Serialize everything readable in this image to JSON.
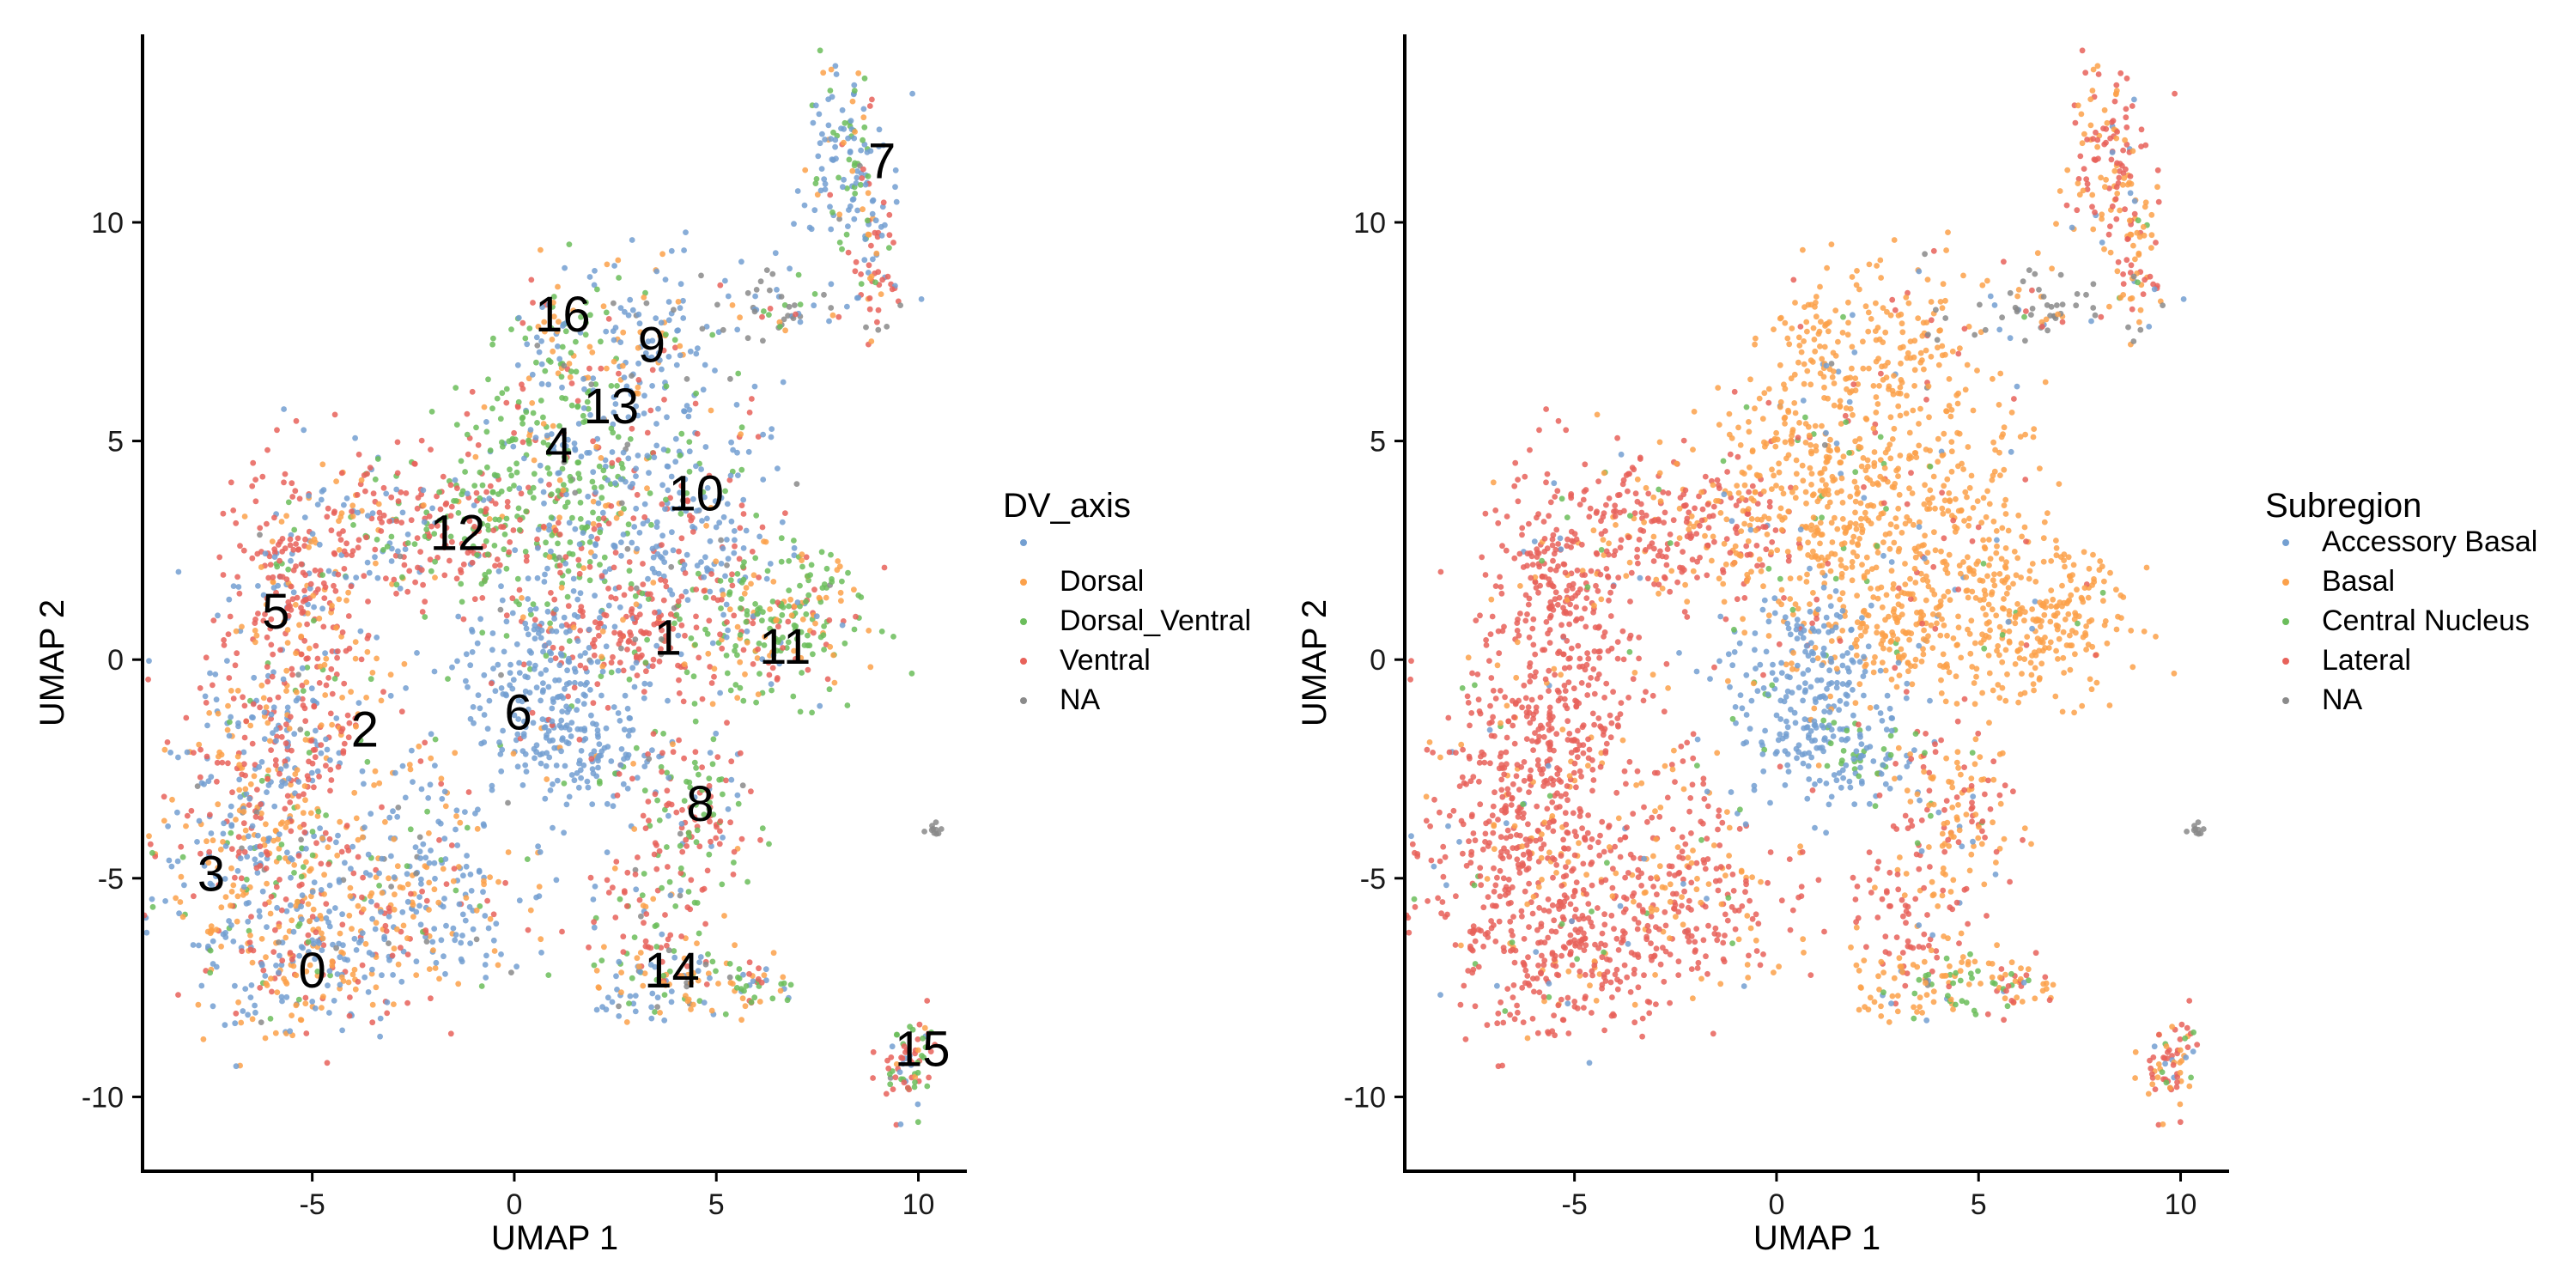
{
  "colors": {
    "blue": "#739FD1",
    "orange": "#FCA14A",
    "green": "#6BBD5B",
    "red": "#E8625A",
    "gray": "#8A8A8A"
  },
  "chart_data": [
    {
      "type": "scatter",
      "title": "",
      "xlabel": "UMAP 1",
      "ylabel": "UMAP 2",
      "xlim": [
        -9.2,
        11.2
      ],
      "ylim": [
        -11.7,
        14.3
      ],
      "xticks": [
        -5,
        0,
        5,
        10
      ],
      "yticks": [
        -10,
        -5,
        0,
        5,
        10
      ],
      "xtick_labels": [
        "-5",
        "0",
        "5",
        "10"
      ],
      "ytick_labels": [
        "-10",
        "-5",
        "0",
        "5",
        "10"
      ],
      "grid": false,
      "legend": {
        "title": "DV_axis",
        "placement": "right",
        "entries": [
          {
            "label": "",
            "color": "#739FD1"
          },
          {
            "label": "Dorsal",
            "color": "#FCA14A"
          },
          {
            "label": "Dorsal_Ventral",
            "color": "#6BBD5B"
          },
          {
            "label": "Ventral",
            "color": "#E8625A"
          },
          {
            "label": "NA",
            "color": "#8A8A8A"
          }
        ]
      },
      "cluster_labels": [
        {
          "text": "0",
          "x": -5.0,
          "y": -7.1
        },
        {
          "text": "1",
          "x": 3.8,
          "y": 0.5
        },
        {
          "text": "2",
          "x": -3.7,
          "y": -1.6
        },
        {
          "text": "3",
          "x": -7.5,
          "y": -4.9
        },
        {
          "text": "4",
          "x": 1.1,
          "y": 4.9
        },
        {
          "text": "5",
          "x": -5.9,
          "y": 1.1
        },
        {
          "text": "6",
          "x": 0.1,
          "y": -1.2
        },
        {
          "text": "7",
          "x": 9.1,
          "y": 11.4
        },
        {
          "text": "8",
          "x": 4.6,
          "y": -3.3
        },
        {
          "text": "9",
          "x": 3.4,
          "y": 7.2
        },
        {
          "text": "10",
          "x": 4.5,
          "y": 3.8
        },
        {
          "text": "11",
          "x": 6.7,
          "y": 0.3
        },
        {
          "text": "12",
          "x": -1.4,
          "y": 2.9
        },
        {
          "text": "13",
          "x": 2.4,
          "y": 5.8
        },
        {
          "text": "14",
          "x": 3.9,
          "y": -7.1
        },
        {
          "text": "15",
          "x": 10.1,
          "y": -8.9
        },
        {
          "text": "16",
          "x": 1.2,
          "y": 7.9
        }
      ]
    },
    {
      "type": "scatter",
      "title": "",
      "xlabel": "UMAP 1",
      "ylabel": "UMAP 2",
      "xlim": [
        -9.2,
        11.2
      ],
      "ylim": [
        -11.7,
        14.3
      ],
      "xticks": [
        -5,
        0,
        5,
        10
      ],
      "yticks": [
        -10,
        -5,
        0,
        5,
        10
      ],
      "xtick_labels": [
        "-5",
        "0",
        "5",
        "10"
      ],
      "ytick_labels": [
        "-10",
        "-5",
        "0",
        "5",
        "10"
      ],
      "grid": false,
      "legend": {
        "title": "Subregion",
        "placement": "right",
        "entries": [
          {
            "label": "Accessory Basal",
            "color": "#739FD1"
          },
          {
            "label": "Basal",
            "color": "#FCA14A"
          },
          {
            "label": "Central Nucleus",
            "color": "#6BBD5B"
          },
          {
            "label": "Lateral",
            "color": "#E8625A"
          },
          {
            "label": "NA",
            "color": "#8A8A8A"
          }
        ]
      },
      "cluster_labels": []
    }
  ]
}
